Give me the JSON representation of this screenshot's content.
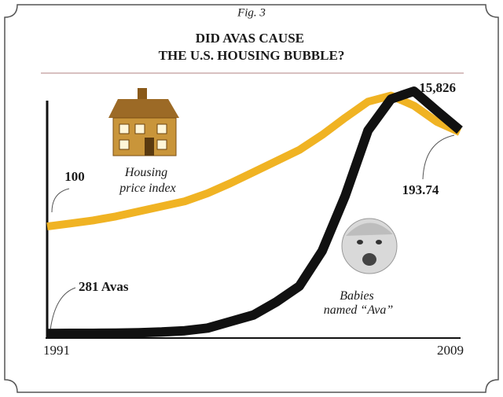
{
  "chart_data": {
    "type": "line",
    "figure_label": "Fig. 3",
    "title": "DID AVAS CAUSE THE U.S. HOUSING BUBBLE?",
    "x": [
      1991,
      1992,
      1993,
      1994,
      1995,
      1996,
      1997,
      1998,
      1999,
      2000,
      2001,
      2002,
      2003,
      2004,
      2005,
      2006,
      2007,
      2008,
      2009
    ],
    "xlim": [
      1991,
      2009
    ],
    "xticks": [
      1991,
      2009
    ],
    "ylim": [
      -10,
      250
    ],
    "y2lim": [
      0,
      20000
    ],
    "series": [
      {
        "name": "Housing price index",
        "color": "#f0b323",
        "axis": "y",
        "values": [
          100,
          103,
          106,
          110,
          115,
          120,
          125,
          133,
          143,
          154,
          165,
          176,
          191,
          208,
          224,
          230,
          220,
          204,
          193.74
        ]
      },
      {
        "name": "Babies named “Ava”",
        "color": "#111111",
        "axis": "y2",
        "values": [
          281,
          300,
          300,
          320,
          350,
          400,
          500,
          700,
          1200,
          1700,
          2700,
          3900,
          6600,
          10800,
          15800,
          18200,
          18800,
          17300,
          15826
        ],
        "value_labels": [
          "281 Avas",
          null,
          null,
          null,
          null,
          null,
          null,
          null,
          null,
          null,
          null,
          null,
          null,
          null,
          null,
          null,
          null,
          null,
          "15,826"
        ]
      }
    ]
  }
}
